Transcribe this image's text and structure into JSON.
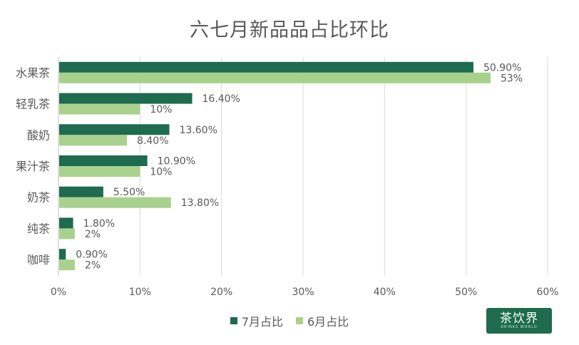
{
  "chart_data": {
    "type": "bar",
    "orientation": "horizontal",
    "title": "六七月新品品占比环比",
    "categories": [
      "水果茶",
      "轻乳茶",
      "酸奶",
      "果汁茶",
      "奶茶",
      "纯茶",
      "咖啡"
    ],
    "series": [
      {
        "name": "7月占比",
        "color": "#1e6b4f",
        "values": [
          50.9,
          16.4,
          13.6,
          10.9,
          5.5,
          1.8,
          0.9
        ],
        "labels": [
          "50.90%",
          "16.40%",
          "13.60%",
          "10.90%",
          "5.50%",
          "1.80%",
          "0.90%"
        ]
      },
      {
        "name": "6月占比",
        "color": "#a9d18e",
        "values": [
          53,
          10,
          8.4,
          10,
          13.8,
          2,
          2
        ],
        "labels": [
          "53%",
          "10%",
          "8.40%",
          "10%",
          "13.80%",
          "2%",
          "2%"
        ]
      }
    ],
    "xlim": [
      0,
      60
    ],
    "xticks": [
      0,
      10,
      20,
      30,
      40,
      50,
      60
    ],
    "xtick_labels": [
      "0%",
      "10%",
      "20%",
      "30%",
      "40%",
      "50%",
      "60%"
    ],
    "grid": true,
    "legend": "bottom"
  },
  "brand": {
    "main": "茶饮界",
    "sub": "DRINKS WORLD",
    "color": "#1e6b4f"
  }
}
